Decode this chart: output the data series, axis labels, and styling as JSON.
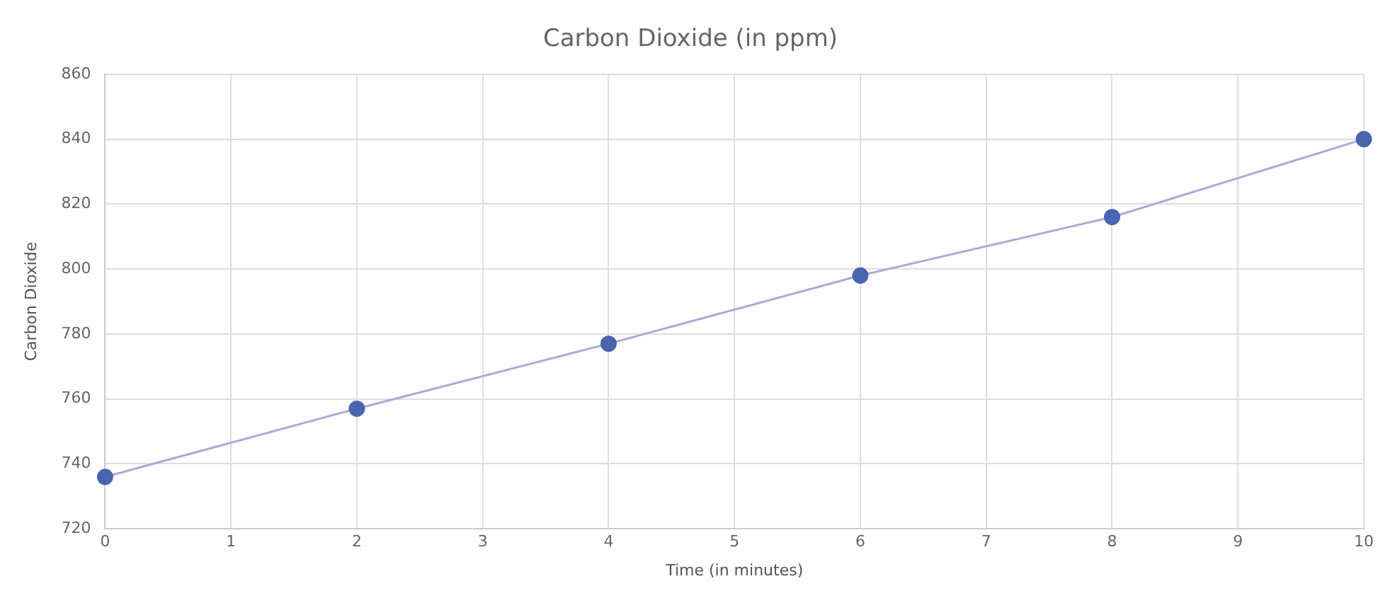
{
  "chart_data": {
    "type": "line",
    "title": "Carbon Dioxide (in ppm)",
    "xlabel": "Time (in minutes)",
    "ylabel": "Carbon Dioxide",
    "x": [
      0,
      2,
      4,
      6,
      8,
      10
    ],
    "series": [
      {
        "color": "#4a64b0",
        "values": [
          736,
          757,
          777,
          798,
          816,
          840
        ]
      }
    ],
    "xlim": [
      0,
      10
    ],
    "xticks": [
      0,
      1,
      2,
      3,
      4,
      5,
      6,
      7,
      8,
      9,
      10
    ],
    "ylim": [
      720,
      860
    ],
    "yticks": [
      720,
      740,
      760,
      780,
      800,
      820,
      840,
      860
    ],
    "grid": true,
    "legend": false,
    "marker": "circle",
    "line_style": "solid"
  }
}
